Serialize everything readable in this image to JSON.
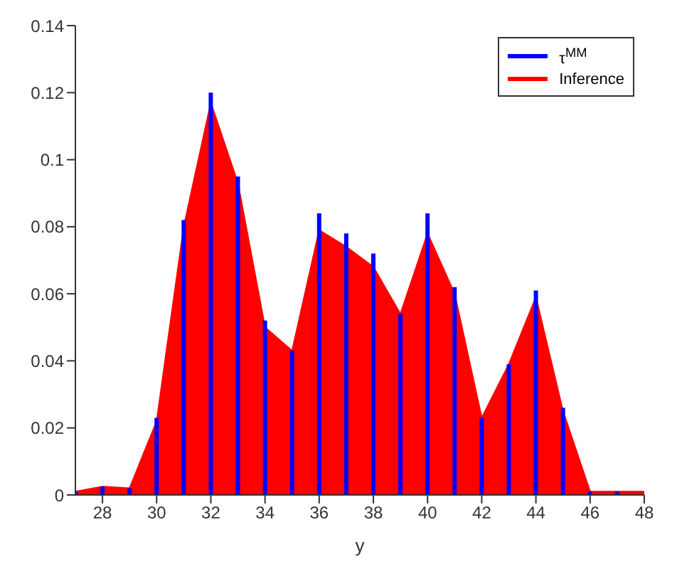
{
  "chart_data": {
    "type": "area",
    "xlabel": "y",
    "x": [
      27,
      28,
      29,
      30,
      31,
      32,
      33,
      34,
      35,
      36,
      37,
      38,
      39,
      40,
      41,
      42,
      43,
      44,
      45,
      46,
      47,
      48
    ],
    "series": [
      {
        "name": "τ$^{MM}$",
        "type": "bar",
        "color": "#0000ff",
        "values": [
          0.001,
          0.0025,
          0.002,
          0.023,
          0.082,
          0.12,
          0.095,
          0.052,
          0.043,
          0.084,
          0.078,
          0.072,
          0.054,
          0.084,
          0.062,
          0.023,
          0.039,
          0.061,
          0.026,
          0.001,
          0.001,
          null
        ]
      },
      {
        "name": "Inference",
        "color": "#ff0000",
        "values": [
          0.001,
          0.0025,
          0.002,
          0.022,
          0.08,
          0.117,
          0.093,
          0.05,
          0.043,
          0.079,
          0.074,
          0.068,
          0.054,
          0.078,
          0.06,
          0.023,
          0.039,
          0.059,
          0.025,
          0.001,
          0.001,
          0.001
        ]
      }
    ],
    "xlim": [
      27,
      48
    ],
    "xticks": [
      28,
      30,
      32,
      34,
      36,
      38,
      40,
      42,
      44,
      46,
      48
    ],
    "ylim": [
      0,
      0.14
    ],
    "yticks": [
      0,
      0.02,
      0.04,
      0.06,
      0.08,
      0.1,
      0.12,
      0.14
    ],
    "legend": "top right"
  }
}
